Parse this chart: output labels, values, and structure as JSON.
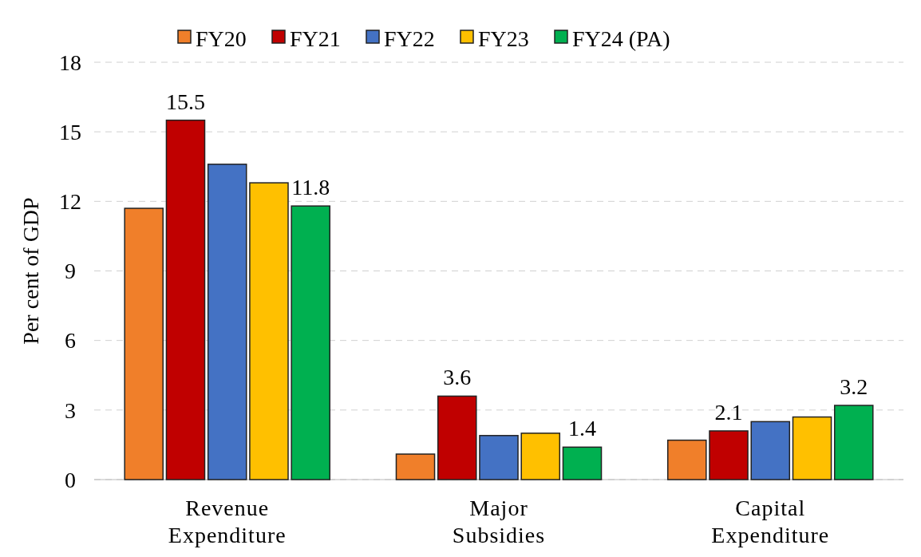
{
  "chart_data": {
    "type": "bar",
    "ylabel": "Per cent of GDP",
    "categories": [
      "Revenue Expenditure",
      "Major Subsidies",
      "Capital Expenditure"
    ],
    "series": [
      {
        "name": "FY20",
        "color": "#f07f2a",
        "values": [
          11.7,
          1.1,
          1.7
        ],
        "value_labels": [
          null,
          null,
          null
        ]
      },
      {
        "name": "FY21",
        "color": "#c00000",
        "values": [
          15.5,
          3.6,
          2.1
        ],
        "value_labels": [
          "15.5",
          "3.6",
          "2.1"
        ]
      },
      {
        "name": "FY22",
        "color": "#4472c4",
        "values": [
          13.6,
          1.9,
          2.5
        ],
        "value_labels": [
          null,
          null,
          null
        ]
      },
      {
        "name": "FY23",
        "color": "#ffc000",
        "values": [
          12.8,
          2.0,
          2.7
        ],
        "value_labels": [
          null,
          null,
          null
        ]
      },
      {
        "name": "FY24 (PA)",
        "color": "#00b050",
        "values": [
          11.8,
          1.4,
          3.2
        ],
        "value_labels": [
          "11.8",
          "1.4",
          "3.2"
        ]
      }
    ],
    "ylim": [
      0,
      18
    ],
    "yticks": [
      0,
      3,
      6,
      9,
      12,
      15,
      18
    ],
    "grid": "y",
    "legend": "top"
  }
}
